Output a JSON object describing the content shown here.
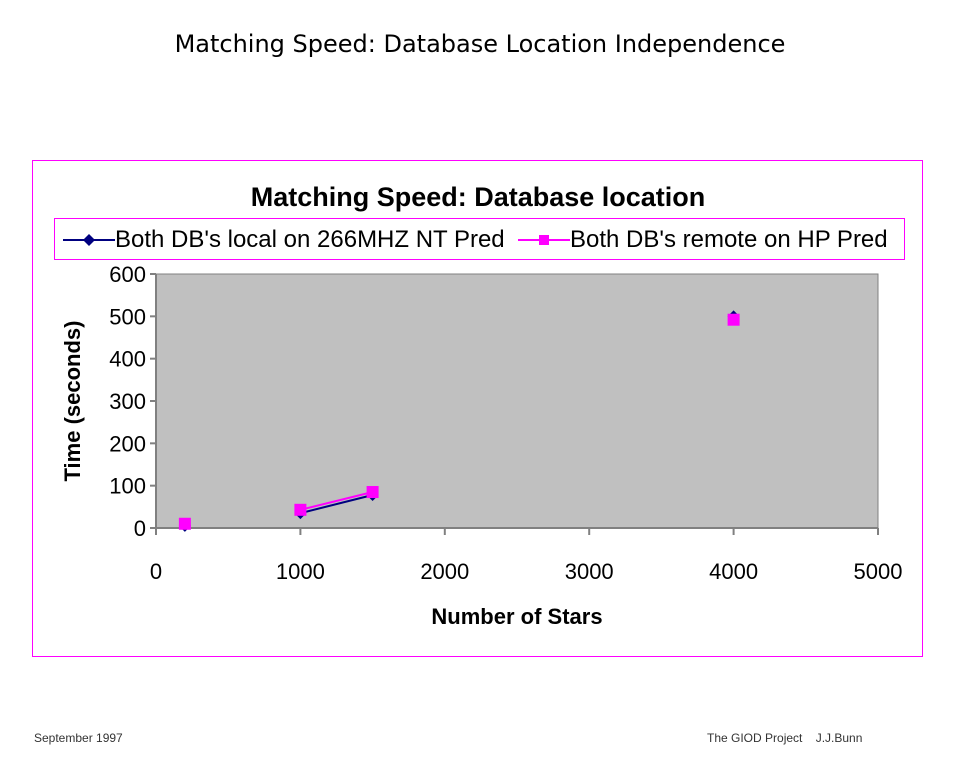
{
  "slide": {
    "title": "Matching Speed: Database Location Independence",
    "footer_left": "September 1997",
    "footer_right": "The GIOD Project    J.J.Bunn"
  },
  "colors": {
    "frame": "#ff00ff",
    "plot_bg": "#c0c0c0",
    "series1": "#000080",
    "series2": "#ff00ff"
  },
  "chart_data": {
    "type": "line",
    "title": "Matching Speed: Database location",
    "xlabel": "Number of Stars",
    "ylabel": "Time (seconds)",
    "xlim": [
      0,
      5000
    ],
    "ylim": [
      0,
      600
    ],
    "xticks": [
      "0",
      "1000",
      "2000",
      "3000",
      "4000",
      "5000"
    ],
    "yticks": [
      "0",
      "100",
      "200",
      "300",
      "400",
      "500",
      "600"
    ],
    "legend_position": "top",
    "series": [
      {
        "name": "Both DB's local on 266MHZ NT Pred",
        "marker": "diamond",
        "points": [
          [
            200,
            5
          ],
          null,
          [
            1000,
            35
          ],
          [
            1500,
            78
          ],
          null,
          [
            4000,
            500
          ]
        ]
      },
      {
        "name": "Both DB's remote on HP Pred",
        "marker": "square",
        "points": [
          [
            200,
            10
          ],
          null,
          [
            1000,
            43
          ],
          [
            1500,
            85
          ],
          null,
          [
            4000,
            492
          ]
        ]
      }
    ]
  }
}
